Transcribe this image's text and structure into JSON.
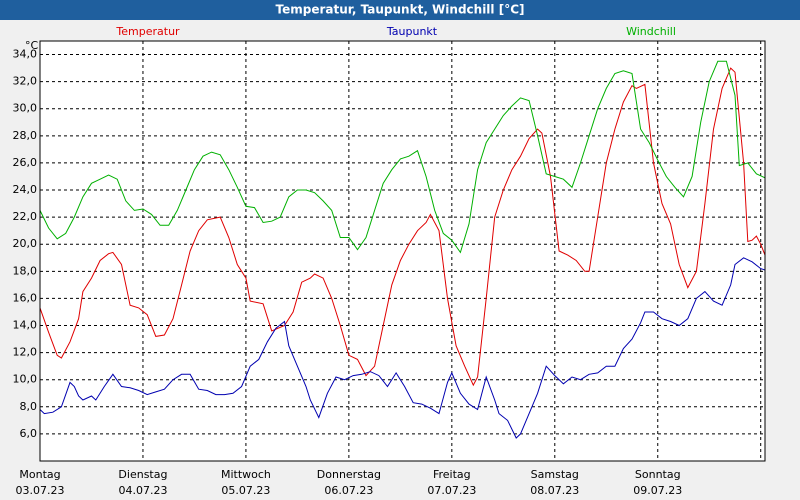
{
  "chart_data": {
    "type": "line",
    "title": "Temperatur, Taupunkt, Windchill [°C]",
    "y_unit": "°C",
    "xlim": [
      0,
      169
    ],
    "ylim": [
      4,
      35
    ],
    "grid": true,
    "xticks": [
      {
        "value": 0,
        "label": "Montag",
        "date": "03.07.23"
      },
      {
        "value": 24,
        "label": "Dienstag",
        "date": "04.07.23"
      },
      {
        "value": 48,
        "label": "Mittwoch",
        "date": "05.07.23"
      },
      {
        "value": 72,
        "label": "Donnerstag",
        "date": "06.07.23"
      },
      {
        "value": 96,
        "label": "Freitag",
        "date": "07.07.23"
      },
      {
        "value": 120,
        "label": "Samstag",
        "date": "08.07.23"
      },
      {
        "value": 144,
        "label": "Sonntag",
        "date": "09.07.23"
      },
      {
        "value": 168
      }
    ],
    "yticks": [
      {
        "value": 6,
        "label": "6,0"
      },
      {
        "value": 8,
        "label": "8,0"
      },
      {
        "value": 10,
        "label": "10,0"
      },
      {
        "value": 12,
        "label": "12,0"
      },
      {
        "value": 14,
        "label": "14,0"
      },
      {
        "value": 16,
        "label": "16,0"
      },
      {
        "value": 18,
        "label": "18,0"
      },
      {
        "value": 20,
        "label": "20,0"
      },
      {
        "value": 22,
        "label": "22,0"
      },
      {
        "value": 24,
        "label": "24,0"
      },
      {
        "value": 26,
        "label": "26,0"
      },
      {
        "value": 28,
        "label": "28,0"
      },
      {
        "value": 30,
        "label": "30,0"
      },
      {
        "value": 32,
        "label": "32,0"
      },
      {
        "value": 34,
        "label": "34,0"
      }
    ],
    "series": [
      {
        "name": "Temperatur",
        "color": "#e00000",
        "x": [
          0,
          2,
          4,
          5,
          7,
          9,
          10,
          12,
          14,
          16,
          17,
          19,
          21,
          23,
          25,
          27,
          29,
          31,
          33,
          35,
          37,
          39,
          42,
          44,
          46,
          48,
          49,
          52,
          54,
          57,
          59,
          61,
          63,
          64,
          66,
          68,
          70,
          72,
          74,
          76,
          78,
          80,
          82,
          84,
          86,
          88,
          90,
          91,
          93,
          95,
          97,
          99,
          101,
          102,
          104,
          106,
          108,
          110,
          112,
          114,
          116,
          117,
          119,
          121,
          123,
          125,
          127,
          128,
          130,
          132,
          134,
          136,
          138,
          139,
          141,
          143,
          145,
          147,
          149,
          151,
          153,
          155,
          157,
          159,
          161,
          162,
          164,
          165,
          166,
          167,
          168,
          169
        ],
        "values": [
          15.3,
          13.5,
          11.8,
          11.6,
          12.8,
          14.5,
          16.5,
          17.5,
          18.8,
          19.3,
          19.4,
          18.5,
          15.5,
          15.3,
          14.8,
          13.2,
          13.3,
          14.5,
          17,
          19.5,
          21,
          21.8,
          22,
          20.5,
          18.5,
          17.5,
          15.8,
          15.6,
          13.6,
          14,
          15,
          17.2,
          17.5,
          17.8,
          17.5,
          16,
          14,
          11.8,
          11.5,
          10.3,
          11,
          14,
          17,
          18.8,
          20,
          21,
          21.6,
          22.2,
          21,
          16,
          12.5,
          11,
          9.6,
          10.2,
          16,
          22,
          24,
          25.5,
          26.5,
          27.8,
          28.5,
          28.2,
          25,
          19.5,
          19.2,
          18.8,
          18,
          18,
          22,
          26,
          28.5,
          30.5,
          31.7,
          31.5,
          31.8,
          26,
          23,
          21.5,
          18.5,
          16.8,
          18,
          23,
          28.5,
          31.5,
          33,
          32.7,
          26,
          20.2,
          20.3,
          20.6,
          20,
          19.2
        ]
      },
      {
        "name": "Taupunkt",
        "color": "#0000b0",
        "x": [
          0,
          1,
          3,
          5,
          7,
          8,
          9,
          10,
          12,
          13,
          15,
          17,
          19,
          21,
          23,
          25,
          27,
          29,
          31,
          33,
          35,
          37,
          39,
          41,
          43,
          45,
          47,
          49,
          51,
          53,
          55,
          57,
          58,
          60,
          62,
          63,
          65,
          67,
          69,
          71,
          73,
          75,
          77,
          79,
          81,
          83,
          85,
          87,
          89,
          91,
          93,
          95,
          96,
          98,
          100,
          102,
          104,
          106,
          107,
          109,
          111,
          112,
          114,
          116,
          118,
          120,
          122,
          124,
          126,
          128,
          130,
          132,
          134,
          136,
          138,
          140,
          141,
          143,
          145,
          147,
          149,
          151,
          153,
          155,
          157,
          159,
          161,
          162,
          164,
          166,
          168,
          169
        ],
        "values": [
          7.8,
          7.5,
          7.6,
          8,
          9.8,
          9.5,
          8.8,
          8.5,
          8.8,
          8.5,
          9.5,
          10.4,
          9.5,
          9.4,
          9.2,
          8.9,
          9.1,
          9.3,
          10,
          10.4,
          10.4,
          9.3,
          9.2,
          8.9,
          8.9,
          9,
          9.5,
          11,
          11.5,
          12.8,
          13.8,
          14.3,
          12.5,
          11,
          9.5,
          8.5,
          7.2,
          9,
          10.2,
          10,
          10.3,
          10.4,
          10.6,
          10.3,
          9.5,
          10.5,
          9.5,
          8.3,
          8.2,
          7.9,
          7.5,
          9.8,
          10.5,
          9,
          8.2,
          7.8,
          10.2,
          8.5,
          7.5,
          7,
          5.7,
          6,
          7.5,
          9,
          11,
          10.3,
          9.7,
          10.2,
          10,
          10.4,
          10.5,
          11,
          11,
          12.3,
          13,
          14.2,
          15,
          15,
          14.5,
          14.3,
          14,
          14.5,
          16,
          16.5,
          15.8,
          15.5,
          17,
          18.5,
          19,
          18.7,
          18.2,
          18.1
        ]
      },
      {
        "name": "Windchill",
        "color": "#00b000",
        "x": [
          0,
          2,
          4,
          6,
          8,
          10,
          12,
          14,
          16,
          18,
          20,
          22,
          24,
          26,
          28,
          30,
          32,
          34,
          36,
          38,
          40,
          42,
          44,
          46,
          48,
          50,
          52,
          54,
          56,
          58,
          60,
          62,
          64,
          66,
          68,
          70,
          72,
          74,
          76,
          78,
          80,
          82,
          84,
          86,
          88,
          90,
          92,
          94,
          96,
          98,
          100,
          102,
          104,
          106,
          108,
          110,
          112,
          114,
          116,
          118,
          120,
          122,
          124,
          126,
          128,
          130,
          132,
          134,
          136,
          138,
          140,
          142,
          144,
          146,
          148,
          150,
          152,
          154,
          156,
          158,
          160,
          162,
          163,
          165,
          167,
          169
        ],
        "values": [
          22.5,
          21.2,
          20.4,
          20.8,
          22,
          23.5,
          24.5,
          24.8,
          25.1,
          24.8,
          23.2,
          22.5,
          22.6,
          22.2,
          21.4,
          21.4,
          22.5,
          24,
          25.5,
          26.5,
          26.8,
          26.6,
          25.5,
          24.2,
          22.8,
          22.7,
          21.6,
          21.7,
          22,
          23.5,
          24,
          24,
          23.8,
          23.2,
          22.5,
          20.5,
          20.5,
          19.6,
          20.5,
          22.5,
          24.5,
          25.5,
          26.3,
          26.5,
          26.9,
          25,
          22.5,
          20.8,
          20.3,
          19.4,
          21.5,
          25.5,
          27.5,
          28.5,
          29.5,
          30.2,
          30.8,
          30.6,
          28,
          25.2,
          25,
          24.8,
          24.2,
          26,
          28,
          30,
          31.5,
          32.6,
          32.8,
          32.6,
          28.5,
          27.5,
          26.2,
          25,
          24.2,
          23.5,
          25,
          29,
          32,
          33.5,
          33.5,
          31,
          25.8,
          26,
          25.2,
          24.9
        ]
      }
    ]
  }
}
